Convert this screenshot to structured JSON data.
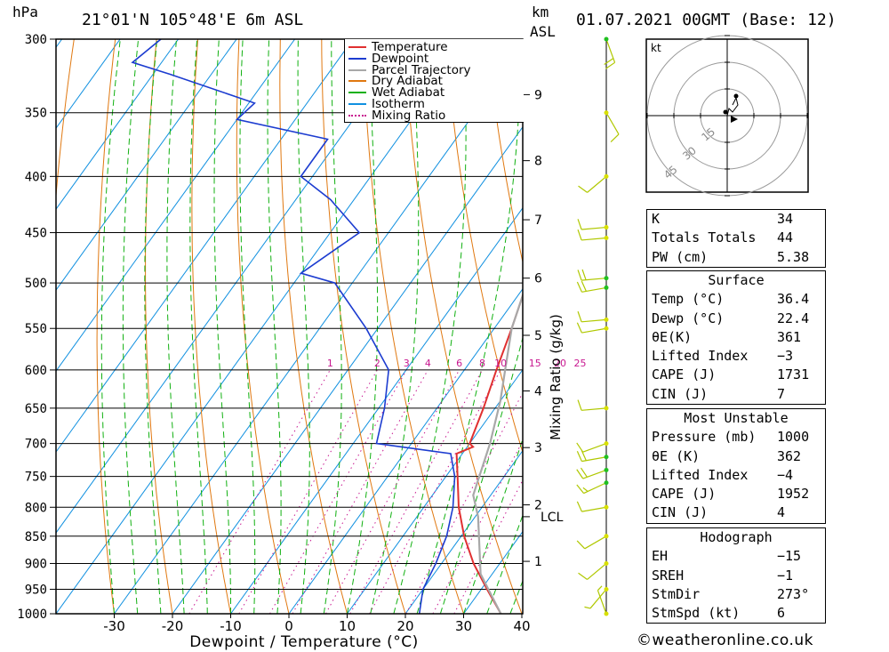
{
  "header": {
    "pressure_unit": "hPa",
    "location": "21°01'N  105°48'E  6m  ASL",
    "height_unit_1": "km",
    "height_unit_2": "ASL",
    "datetime": "01.07.2021  00GMT  (Base: 12)"
  },
  "legend": {
    "items": [
      {
        "label": "Temperature",
        "color": "#e03030",
        "style": "solid"
      },
      {
        "label": "Dewpoint",
        "color": "#1c3cd0",
        "style": "solid"
      },
      {
        "label": "Parcel Trajectory",
        "color": "#a8a8a8",
        "style": "solid"
      },
      {
        "label": "Dry Adiabat",
        "color": "#e07810",
        "style": "solid"
      },
      {
        "label": "Wet Adiabat",
        "color": "#10b010",
        "style": "solid"
      },
      {
        "label": "Isotherm",
        "color": "#1090e0",
        "style": "solid"
      },
      {
        "label": "Mixing Ratio",
        "color": "#c81890",
        "style": "dotted"
      }
    ]
  },
  "chart_data": {
    "type": "line",
    "title": "",
    "xlabel": "Dewpoint / Temperature (°C)",
    "ylabel": "hPa",
    "right_axis_label": "Mixing Ratio (g/kg)",
    "xlim": [
      -40,
      40
    ],
    "ylim": [
      1000,
      300
    ],
    "x_ticks": [
      "-30",
      "-20",
      "-10",
      "0",
      "10",
      "20",
      "30",
      "40"
    ],
    "pressure_levels": [
      300,
      350,
      400,
      450,
      500,
      550,
      600,
      650,
      700,
      750,
      800,
      850,
      900,
      950,
      1000
    ],
    "height_km_ticks": [
      {
        "label": "9",
        "p": 337
      },
      {
        "label": "8",
        "p": 387
      },
      {
        "label": "7",
        "p": 438
      },
      {
        "label": "6",
        "p": 495
      },
      {
        "label": "5",
        "p": 558
      },
      {
        "label": "4",
        "p": 627
      },
      {
        "label": "3",
        "p": 706
      },
      {
        "label": "2",
        "p": 796
      },
      {
        "label": "1",
        "p": 896
      }
    ],
    "lcl": {
      "label": "LCL",
      "p": 816
    },
    "mixing_ratio_labels": [
      "1",
      "2",
      "3",
      "4",
      "6",
      "8",
      "10",
      "15",
      "20",
      "25"
    ],
    "mixing_ratio_label_p": 600,
    "series": [
      {
        "name": "Temperature",
        "points": [
          [
            36.4,
            1000
          ],
          [
            31,
            950
          ],
          [
            25.5,
            900
          ],
          [
            20.5,
            850
          ],
          [
            16,
            800
          ],
          [
            12,
            750
          ],
          [
            9,
            715
          ],
          [
            11,
            705
          ],
          [
            10,
            700
          ],
          [
            8,
            650
          ],
          [
            5.5,
            600
          ],
          [
            3,
            550
          ],
          [
            0,
            500
          ],
          [
            -1.5,
            480
          ],
          [
            -6,
            450
          ],
          [
            -7,
            430
          ],
          [
            -10,
            400
          ],
          [
            -16,
            360
          ]
        ]
      },
      {
        "name": "Dewpoint",
        "points": [
          [
            22.4,
            1000
          ],
          [
            20,
            950
          ],
          [
            19,
            900
          ],
          [
            17.5,
            850
          ],
          [
            15,
            800
          ],
          [
            11.5,
            750
          ],
          [
            8,
            715
          ],
          [
            -6,
            700
          ],
          [
            -9,
            650
          ],
          [
            -13,
            600
          ],
          [
            -22,
            550
          ],
          [
            -33,
            500
          ],
          [
            -40,
            490
          ],
          [
            -35,
            450
          ],
          [
            -44,
            420
          ],
          [
            -52,
            400
          ],
          [
            -52,
            370
          ],
          [
            -70,
            355
          ],
          [
            -69,
            343
          ],
          [
            -87,
            323
          ],
          [
            -95,
            315
          ],
          [
            -93,
            300
          ]
        ]
      },
      {
        "name": "Parcel Trajectory",
        "points": [
          [
            36.4,
            1000
          ],
          [
            28,
            920
          ],
          [
            20.5,
            816
          ],
          [
            17,
            780
          ],
          [
            13.5,
            700
          ],
          [
            10,
            640
          ],
          [
            7,
            600
          ],
          [
            3,
            550
          ],
          [
            0,
            500
          ],
          [
            -4,
            450
          ],
          [
            -9,
            400
          ],
          [
            -15,
            350
          ],
          [
            -20,
            320
          ]
        ]
      }
    ],
    "wind_barbs": [
      {
        "p": 1000,
        "dir": 340,
        "spd": 5
      },
      {
        "p": 950,
        "dir": 220,
        "spd": 5
      },
      {
        "p": 900,
        "dir": 230,
        "spd": 10
      },
      {
        "p": 850,
        "dir": 240,
        "spd": 10
      },
      {
        "p": 800,
        "dir": 260,
        "spd": 10
      },
      {
        "p": 760,
        "dir": 245,
        "spd": 15
      },
      {
        "p": 740,
        "dir": 250,
        "spd": 20
      },
      {
        "p": 720,
        "dir": 260,
        "spd": 20
      },
      {
        "p": 700,
        "dir": 250,
        "spd": 10
      },
      {
        "p": 650,
        "dir": 265,
        "spd": 10
      },
      {
        "p": 550,
        "dir": 260,
        "spd": 10
      },
      {
        "p": 540,
        "dir": 265,
        "spd": 10
      },
      {
        "p": 505,
        "dir": 260,
        "spd": 20
      },
      {
        "p": 495,
        "dir": 265,
        "spd": 20
      },
      {
        "p": 455,
        "dir": 265,
        "spd": 10
      },
      {
        "p": 445,
        "dir": 265,
        "spd": 10
      },
      {
        "p": 400,
        "dir": 230,
        "spd": 10
      },
      {
        "p": 350,
        "dir": 150,
        "spd": 10
      },
      {
        "p": 300,
        "dir": 160,
        "spd": 20
      }
    ],
    "hodograph": {
      "unit": "kt",
      "ring_labels": [
        "15",
        "30",
        "45"
      ],
      "points": [
        [
          0,
          0
        ],
        [
          1,
          4
        ],
        [
          3,
          2
        ],
        [
          6,
          6
        ],
        [
          5,
          10
        ],
        [
          3,
          6
        ]
      ],
      "storm_motion": [
        4,
        -2
      ]
    }
  },
  "indices": {
    "general": [
      {
        "label": "K",
        "value": "34"
      },
      {
        "label": "Totals Totals",
        "value": "44"
      },
      {
        "label": "PW (cm)",
        "value": "5.38"
      }
    ],
    "surface": {
      "title": "Surface",
      "rows": [
        {
          "label": "Temp (°C)",
          "value": "36.4"
        },
        {
          "label": "Dewp (°C)",
          "value": "22.4"
        },
        {
          "label": "θE(K)",
          "value": "361"
        },
        {
          "label": "Lifted Index",
          "value": "−3"
        },
        {
          "label": "CAPE (J)",
          "value": "1731"
        },
        {
          "label": "CIN (J)",
          "value": "7"
        }
      ]
    },
    "most_unstable": {
      "title": "Most Unstable",
      "rows": [
        {
          "label": "Pressure (mb)",
          "value": "1000"
        },
        {
          "label": "θE (K)",
          "value": "362"
        },
        {
          "label": "Lifted Index",
          "value": "−4"
        },
        {
          "label": "CAPE (J)",
          "value": "1952"
        },
        {
          "label": "CIN (J)",
          "value": "4"
        }
      ]
    },
    "hodograph": {
      "title": "Hodograph",
      "rows": [
        {
          "label": "EH",
          "value": "−15"
        },
        {
          "label": "SREH",
          "value": "−1"
        },
        {
          "label": "StmDir",
          "value": "273°"
        },
        {
          "label": "StmSpd (kt)",
          "value": "6"
        }
      ]
    }
  },
  "footer": {
    "copyright": "©weatheronline.co.uk"
  }
}
